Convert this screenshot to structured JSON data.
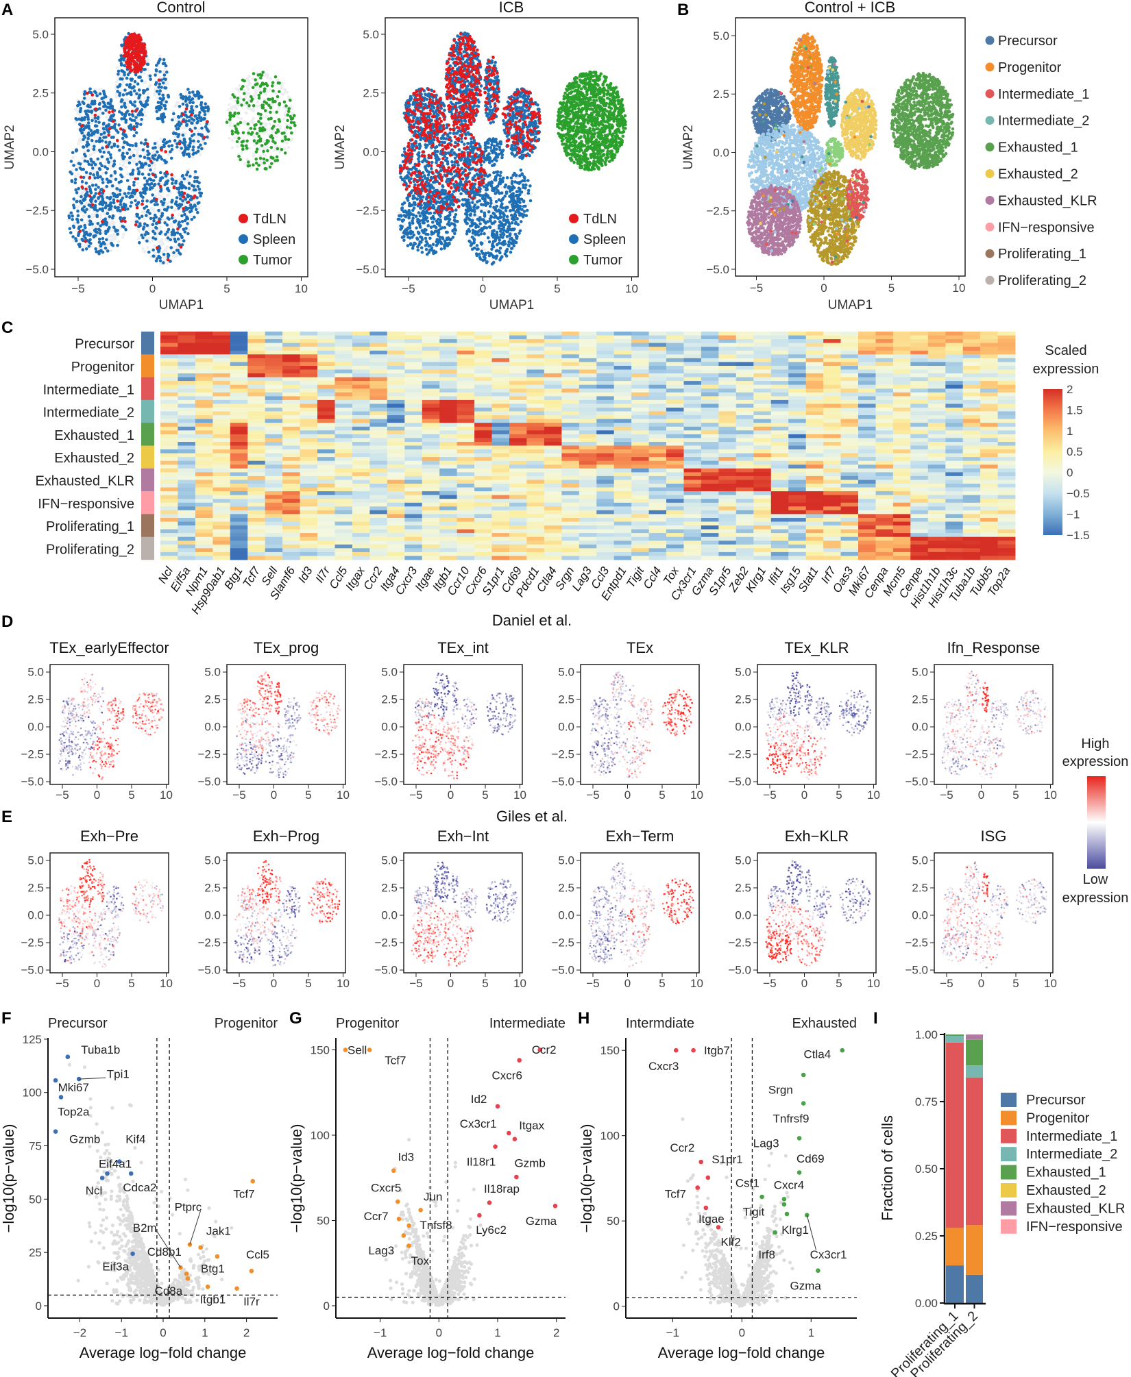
{
  "panel_letters": [
    "A",
    "B",
    "C",
    "D",
    "E",
    "F",
    "G",
    "H",
    "I"
  ],
  "chart_data": [
    {
      "id": "A",
      "type": "scatter",
      "plots": [
        {
          "title": "Control"
        },
        {
          "title": "ICB"
        }
      ],
      "xlabel": "UMAP1",
      "ylabel": "UMAP2",
      "xlim": [
        -6.5,
        10.5
      ],
      "ylim": [
        -5.5,
        5.5
      ],
      "xticks": [
        "−5",
        "0",
        "5",
        "10"
      ],
      "yticks": [
        "5.0",
        "2.5",
        "0.0",
        "−2.5",
        "−5.0"
      ],
      "legend": [
        {
          "label": "TdLN",
          "color": "#e41a1c"
        },
        {
          "label": "Spleen",
          "color": "#1f6fb4"
        },
        {
          "label": "Tumor",
          "color": "#2ca02c"
        }
      ]
    },
    {
      "id": "B",
      "type": "scatter",
      "title": "Control + ICB",
      "xlabel": "UMAP1",
      "ylabel": "UMAP2",
      "xticks": [
        "−5",
        "0",
        "5",
        "10"
      ],
      "yticks": [
        "5.0",
        "2.5",
        "0.0",
        "−2.5",
        "−5.0"
      ],
      "legend": [
        {
          "label": "Precursor",
          "color": "#4e79a7"
        },
        {
          "label": "Progenitor",
          "color": "#f28e2b"
        },
        {
          "label": "Intermediate_1",
          "color": "#e15759"
        },
        {
          "label": "Intermediate_2",
          "color": "#76b7b2"
        },
        {
          "label": "Exhausted_1",
          "color": "#59a14f"
        },
        {
          "label": "Exhausted_2",
          "color": "#edc948"
        },
        {
          "label": "Exhausted_KLR",
          "color": "#b07aa1"
        },
        {
          "label": "IFN−responsive",
          "color": "#ff9da7"
        },
        {
          "label": "Proliferating_1",
          "color": "#9c755f"
        },
        {
          "label": "Proliferating_2",
          "color": "#bab0ac"
        }
      ]
    },
    {
      "id": "C",
      "type": "heatmap",
      "rows": [
        "Precursor",
        "Progenitor",
        "Intermediate_1",
        "Intermediate_2",
        "Exhausted_1",
        "Exhausted_2",
        "Exhausted_KLR",
        "IFN−responsive",
        "Proliferating_1",
        "Proliferating_2"
      ],
      "genes": [
        "Ncl",
        "Eif5a",
        "Npm1",
        "Hsp90ab1",
        "Btg1",
        "Tcf7",
        "Sell",
        "Slamf6",
        "Id3",
        "Il7r",
        "Ccl5",
        "Itgax",
        "Ccr2",
        "Itga4",
        "Cxcr3",
        "Itgae",
        "Itgb1",
        "Ccr10",
        "Cxcr6",
        "S1pr1",
        "Cd69",
        "Pdcd1",
        "Ctla4",
        "Srgn",
        "Lag3",
        "Ccl3",
        "Entpd1",
        "Tigit",
        "Ccl4",
        "Tox",
        "Cx3cr1",
        "Gzma",
        "S1pr5",
        "Zeb2",
        "Klrg1",
        "Ifit1",
        "Isg15",
        "Stat1",
        "Irf7",
        "Oas3",
        "Mki67",
        "Cenpa",
        "Mcm5",
        "Cenpe",
        "Hist1h1b",
        "Hist1h3c",
        "Tuba1b",
        "Tubb5",
        "Top2a"
      ],
      "cluster_means": [
        {
          "cluster": "Precursor",
          "genes": [
            "Ncl",
            "Eif5a",
            "Npm1",
            "Hsp90ab1"
          ],
          "value": 2.0
        },
        {
          "cluster": "Precursor",
          "genes": [
            "Mki67",
            "Cenpa",
            "Mcm5",
            "Cenpe",
            "Hist1h1b",
            "Hist1h3c",
            "Tuba1b",
            "Tubb5",
            "Top2a"
          ],
          "value": 0.9
        },
        {
          "cluster": "Precursor",
          "genes": [
            "Btg1"
          ],
          "value": -1.5
        },
        {
          "cluster": "Progenitor",
          "genes": [
            "Tcf7",
            "Sell",
            "Slamf6",
            "Id3"
          ],
          "value": 1.7
        },
        {
          "cluster": "Intermediate_1",
          "genes": [
            "Ccl5",
            "Itgax",
            "Ccr2"
          ],
          "value": 1.0
        },
        {
          "cluster": "Intermediate_2",
          "genes": [
            "Il7r",
            "Itgae",
            "Itgb1",
            "Ccr10"
          ],
          "value": 1.8
        },
        {
          "cluster": "Intermediate_2",
          "genes": [
            "Itga4"
          ],
          "value": -1.2
        },
        {
          "cluster": "Exhausted_1",
          "genes": [
            "Btg1",
            "Cxcr6",
            "Pdcd1",
            "Ctla4",
            "Cd69"
          ],
          "value": 1.8
        },
        {
          "cluster": "Exhausted_1",
          "genes": [
            "S1pr1"
          ],
          "value": -1.0
        },
        {
          "cluster": "Exhausted_2",
          "genes": [
            "Srgn",
            "Lag3",
            "Ccl3",
            "Entpd1",
            "Tigit",
            "Ccl4",
            "Tox",
            "Btg1"
          ],
          "value": 1.3
        },
        {
          "cluster": "Exhausted_KLR",
          "genes": [
            "Cx3cr1",
            "Gzma",
            "S1pr5",
            "Zeb2",
            "Klrg1"
          ],
          "value": 1.9
        },
        {
          "cluster": "IFN−responsive",
          "genes": [
            "Ifit1",
            "Isg15",
            "Stat1",
            "Irf7",
            "Oas3"
          ],
          "value": 2.0
        },
        {
          "cluster": "IFN−responsive",
          "genes": [
            "Sell",
            "Slamf6"
          ],
          "value": 1.4
        },
        {
          "cluster": "Proliferating_1",
          "genes": [
            "Mki67",
            "Cenpa",
            "Mcm5"
          ],
          "value": 1.6
        },
        {
          "cluster": "Proliferating_1",
          "genes": [
            "Btg1"
          ],
          "value": -1.0
        },
        {
          "cluster": "Proliferating_2",
          "genes": [
            "Cenpe",
            "Hist1h1b",
            "Hist1h3c",
            "Tuba1b",
            "Tubb5",
            "Top2a"
          ],
          "value": 2.0
        },
        {
          "cluster": "Proliferating_2",
          "genes": [
            "Mki67",
            "Cenpa",
            "Mcm5"
          ],
          "value": 1.2
        },
        {
          "cluster": "Proliferating_2",
          "genes": [
            "Btg1"
          ],
          "value": -1.2
        }
      ],
      "legend_title": [
        "Scaled",
        "expression"
      ],
      "legend_ticks": [
        "2",
        "1.5",
        "1",
        "0.5",
        "0",
        "−0.5",
        "−1",
        "−1.5"
      ],
      "range": [
        -1.5,
        2
      ]
    },
    {
      "id": "D",
      "type": "scatter",
      "title": "Daniel et al.",
      "panels": [
        "TEx_earlyEffector",
        "TEx_prog",
        "TEx_int",
        "TEx",
        "TEx_KLR",
        "Ifn_Response"
      ],
      "xticks": [
        "−5",
        "0",
        "5",
        "10"
      ],
      "yticks": [
        "5.0",
        "2.5",
        "0.0",
        "−2.5",
        "−5.0"
      ]
    },
    {
      "id": "E",
      "type": "scatter",
      "title": "Giles et al.",
      "panels": [
        "Exh−Pre",
        "Exh−Prog",
        "Exh−Int",
        "Exh−Term",
        "Exh−KLR",
        "ISG"
      ],
      "xticks": [
        "−5",
        "0",
        "5",
        "10"
      ],
      "yticks": [
        "5.0",
        "2.5",
        "0.0",
        "−2.5",
        "−5.0"
      ],
      "legend": {
        "high": [
          "High",
          "expression"
        ],
        "low": [
          "Low",
          "expression"
        ],
        "high_color": "#e8241c",
        "low_color": "#4b4ba0"
      }
    },
    {
      "id": "F",
      "type": "scatter",
      "left_group": "Precursor",
      "right_group": "Progenitor",
      "xlabel": "Average log−fold change",
      "ylabel": "−log10(p−value)",
      "xticks": [
        -2,
        -1,
        0,
        1,
        2
      ],
      "yticks": [
        0,
        25,
        50,
        75,
        100,
        125
      ],
      "xlim": [
        -2.76,
        2.75
      ],
      "ylim": [
        -6,
        126
      ],
      "thresholds": {
        "logfc": 0.15,
        "neglog10p": 5
      },
      "left_color": "#3d6fb6",
      "right_color": "#f28e2b",
      "genes": [
        {
          "gene": "Tuba1b",
          "x": -2.29,
          "y": 116.7,
          "side": "left"
        },
        {
          "gene": "Tpi1",
          "x": -2.02,
          "y": 106.3,
          "side": "left"
        },
        {
          "gene": "Mki67",
          "x": -2.58,
          "y": 105.7,
          "side": "left"
        },
        {
          "gene": "Top2a",
          "x": -2.45,
          "y": 97.8,
          "side": "left"
        },
        {
          "gene": "Gzmb",
          "x": -2.58,
          "y": 81.7,
          "side": "left"
        },
        {
          "gene": "Kif4",
          "x": -1.05,
          "y": 67.6,
          "side": "left"
        },
        {
          "gene": "Eif4a1",
          "x": -1.34,
          "y": 62.0,
          "side": "left"
        },
        {
          "gene": "Ncl",
          "x": -1.46,
          "y": 59.9,
          "side": "left"
        },
        {
          "gene": "Cdca2",
          "x": -0.77,
          "y": 62.0,
          "side": "left"
        },
        {
          "gene": "Eif3a",
          "x": -0.73,
          "y": 24.4,
          "side": "left"
        },
        {
          "gene": "Tcf7",
          "x": 2.15,
          "y": 58.4,
          "side": "right"
        },
        {
          "gene": "Ptprc",
          "x": 0.64,
          "y": 28.7,
          "side": "right"
        },
        {
          "gene": "Jak1",
          "x": 0.9,
          "y": 27.3,
          "side": "right"
        },
        {
          "gene": "Btg1",
          "x": 1.3,
          "y": 23.1,
          "side": "right"
        },
        {
          "gene": "Ccl5",
          "x": 2.12,
          "y": 16.3,
          "side": "right"
        },
        {
          "gene": "B2m",
          "x": 0.42,
          "y": 17.9,
          "side": "right"
        },
        {
          "gene": "Cd8b1",
          "x": 0.56,
          "y": 15.0,
          "side": "right"
        },
        {
          "gene": "Cd8a",
          "x": 0.59,
          "y": 12.8,
          "side": "right"
        },
        {
          "gene": "Itgb1",
          "x": 1.07,
          "y": 8.9,
          "side": "right"
        },
        {
          "gene": "Il7r",
          "x": 1.77,
          "y": 8.1,
          "side": "right"
        }
      ]
    },
    {
      "id": "G",
      "type": "scatter",
      "left_group": "Progenitor",
      "right_group": "Intermediate",
      "xlabel": "Average log−fold change",
      "ylabel": "−log10(p−value)",
      "xticks": [
        -1,
        0,
        1,
        2
      ],
      "yticks": [
        0,
        50,
        100,
        150
      ],
      "xlim": [
        -1.75,
        2.16
      ],
      "ylim": [
        -7.4,
        157
      ],
      "thresholds": {
        "logfc": 0.15,
        "neglog10p": 5
      },
      "left_color": "#f28e2b",
      "right_color": "#e8414e",
      "genes": [
        {
          "gene": "Sell",
          "x": -1.59,
          "y": 150,
          "side": "left"
        },
        {
          "gene": "Tcf7",
          "x": -1.18,
          "y": 150,
          "side": "left"
        },
        {
          "gene": "Id3",
          "x": -0.77,
          "y": 79.2,
          "side": "left"
        },
        {
          "gene": "Cxcr5",
          "x": -0.7,
          "y": 61.0,
          "side": "left"
        },
        {
          "gene": "Jun",
          "x": -0.31,
          "y": 56.1,
          "side": "left"
        },
        {
          "gene": "Ccr7",
          "x": -0.68,
          "y": 50.9,
          "side": "left"
        },
        {
          "gene": "Tnfsf8",
          "x": -0.51,
          "y": 47.0,
          "side": "left"
        },
        {
          "gene": "Lag3",
          "x": -0.6,
          "y": 41.2,
          "side": "left"
        },
        {
          "gene": "Tox",
          "x": -0.51,
          "y": 35.2,
          "side": "left"
        },
        {
          "gene": "Ccr2",
          "x": 1.72,
          "y": 150,
          "side": "right"
        },
        {
          "gene": "Cxcr6",
          "x": 1.37,
          "y": 143.9,
          "side": "right"
        },
        {
          "gene": "Id2",
          "x": 1.0,
          "y": 116.9,
          "side": "right"
        },
        {
          "gene": "Cx3cr1",
          "x": 1.19,
          "y": 101.2,
          "side": "right"
        },
        {
          "gene": "Itgax",
          "x": 1.29,
          "y": 97.7,
          "side": "right"
        },
        {
          "gene": "Il18r1",
          "x": 0.96,
          "y": 93.3,
          "side": "right"
        },
        {
          "gene": "Gzmb",
          "x": 1.32,
          "y": 75.5,
          "side": "right"
        },
        {
          "gene": "Il18rap",
          "x": 0.86,
          "y": 60.4,
          "side": "right"
        },
        {
          "gene": "Ly6c2",
          "x": 0.69,
          "y": 53.0,
          "side": "right"
        },
        {
          "gene": "Gzma",
          "x": 1.98,
          "y": 58.5,
          "side": "right"
        }
      ]
    },
    {
      "id": "H",
      "type": "scatter",
      "left_group": "Intermdiate",
      "right_group": "Exhausted",
      "xlabel": "Average log−fold change",
      "ylabel": "−log10(p−value)",
      "xticks": [
        -1,
        0,
        1
      ],
      "yticks": [
        0,
        50,
        100,
        150
      ],
      "xlim": [
        -1.67,
        1.66
      ],
      "ylim": [
        -7.4,
        157
      ],
      "thresholds": {
        "logfc": 0.15,
        "neglog10p": 5
      },
      "left_color": "#e8414e",
      "right_color": "#4aa347",
      "genes": [
        {
          "gene": "Cxcr3",
          "x": -0.95,
          "y": 150,
          "side": "left"
        },
        {
          "gene": "Itgb7",
          "x": -0.7,
          "y": 150,
          "side": "left"
        },
        {
          "gene": "Ccr2",
          "x": -0.59,
          "y": 84.6,
          "side": "left"
        },
        {
          "gene": "S1pr1",
          "x": -0.49,
          "y": 75.4,
          "side": "left"
        },
        {
          "gene": "Tcf7",
          "x": -0.64,
          "y": 69.5,
          "side": "left"
        },
        {
          "gene": "Itgae",
          "x": -0.52,
          "y": 57.7,
          "side": "left"
        },
        {
          "gene": "Klf2",
          "x": -0.34,
          "y": 46.3,
          "side": "left"
        },
        {
          "gene": "Ctla4",
          "x": 1.45,
          "y": 150,
          "side": "right"
        },
        {
          "gene": "Srgn",
          "x": 0.89,
          "y": 135.6,
          "side": "right"
        },
        {
          "gene": "Tnfrsf9",
          "x": 0.89,
          "y": 118.9,
          "side": "right"
        },
        {
          "gene": "Lag3",
          "x": 0.83,
          "y": 98.5,
          "side": "right"
        },
        {
          "gene": "Cd69",
          "x": 0.83,
          "y": 78.4,
          "side": "right"
        },
        {
          "gene": "Csf1",
          "x": 0.29,
          "y": 64.1,
          "side": "right"
        },
        {
          "gene": "Cxcr4",
          "x": 0.61,
          "y": 62.8,
          "side": "right"
        },
        {
          "gene": "Tigit",
          "x": 0.61,
          "y": 59.7,
          "side": "right"
        },
        {
          "gene": "Irf8",
          "x": 0.65,
          "y": 54.1,
          "side": "right"
        },
        {
          "gene": "Cx3cr1",
          "x": 0.94,
          "y": 53.4,
          "side": "right"
        },
        {
          "gene": "Klrg1",
          "x": 0.48,
          "y": 43.2,
          "side": "right"
        },
        {
          "gene": "Gzma",
          "x": 1.1,
          "y": 20.9,
          "side": "right"
        }
      ]
    },
    {
      "id": "I",
      "type": "bar",
      "stacked": true,
      "ylabel": "Fraction of cells",
      "ylim": [
        0,
        1
      ],
      "yticks": [
        "0.00",
        "0.25",
        "0.50",
        "0.75",
        "1.00"
      ],
      "categories": [
        "Proliferating_1",
        "Proliferating_2"
      ],
      "series": [
        {
          "name": "Precursor",
          "color": "#4e79a7",
          "values": [
            0.14,
            0.105
          ]
        },
        {
          "name": "Progenitor",
          "color": "#f28e2b",
          "values": [
            0.14,
            0.185
          ]
        },
        {
          "name": "Intermediate_1",
          "color": "#e15759",
          "values": [
            0.69,
            0.55
          ]
        },
        {
          "name": "Intermediate_2",
          "color": "#76b7b2",
          "values": [
            0.025,
            0.045
          ]
        },
        {
          "name": "Exhausted_1",
          "color": "#59a14f",
          "values": [
            0.005,
            0.095
          ]
        },
        {
          "name": "Exhausted_2",
          "color": "#edc948",
          "values": [
            0,
            0
          ]
        },
        {
          "name": "Exhausted_KLR",
          "color": "#b07aa1",
          "values": [
            0,
            0.02
          ]
        },
        {
          "name": "IFN−responsive",
          "color": "#ff9da7",
          "values": [
            0,
            0
          ]
        }
      ],
      "legend_position": "right"
    }
  ]
}
